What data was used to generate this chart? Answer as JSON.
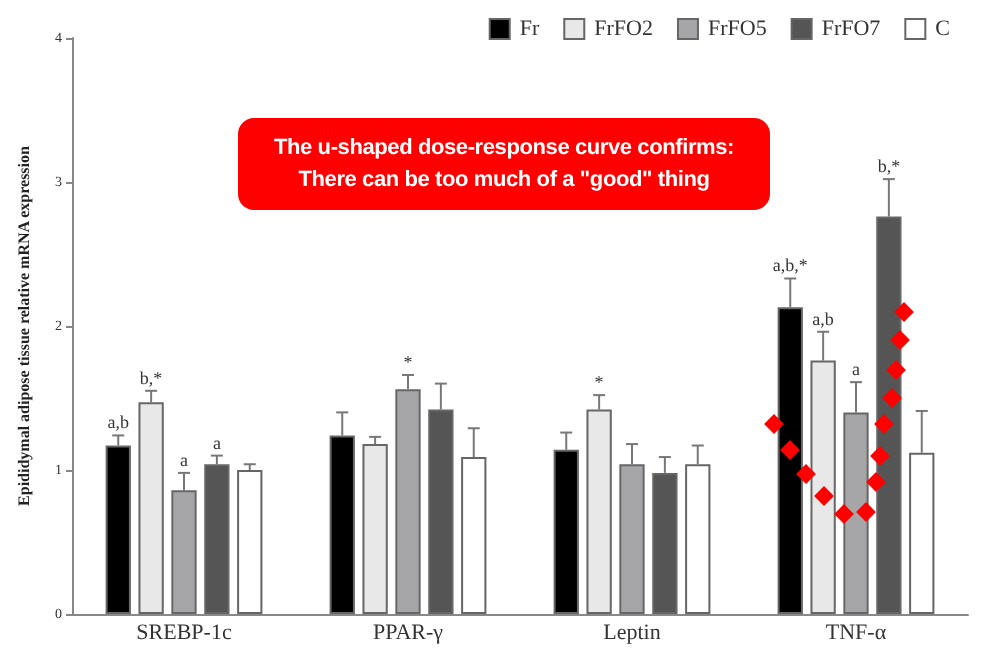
{
  "chart_data": {
    "type": "bar",
    "ylabel": "Epididymal adipose tissue relative mRNA expression",
    "categories": [
      "SREBP-1c",
      "PPAR-γ",
      "Leptin",
      "TNF-α"
    ],
    "series": [
      {
        "name": "Fr",
        "color": "#000000",
        "values": [
          1.17,
          1.24,
          1.14,
          2.13
        ],
        "errors": [
          0.07,
          0.16,
          0.12,
          0.2
        ],
        "value_labels": [
          "a,b",
          null,
          null,
          "a,b,*"
        ]
      },
      {
        "name": "FrFO2",
        "color": "#e8e8e8",
        "values": [
          1.47,
          1.18,
          1.42,
          1.76
        ],
        "errors": [
          0.08,
          0.05,
          0.1,
          0.2
        ],
        "value_labels": [
          "b,*",
          null,
          "*",
          "a,b"
        ]
      },
      {
        "name": "FrFO5",
        "color": "#a6a6a8",
        "values": [
          0.86,
          1.56,
          1.04,
          1.4
        ],
        "errors": [
          0.12,
          0.1,
          0.14,
          0.21
        ],
        "value_labels": [
          "a",
          "*",
          null,
          "a"
        ]
      },
      {
        "name": "FrFO7",
        "color": "#555555",
        "values": [
          1.04,
          1.42,
          0.98,
          2.76
        ],
        "errors": [
          0.06,
          0.18,
          0.11,
          0.26
        ],
        "value_labels": [
          "a",
          null,
          null,
          "b,*"
        ]
      },
      {
        "name": "C",
        "color": "#ffffff",
        "values": [
          1.0,
          1.09,
          1.04,
          1.12
        ],
        "errors": [
          0.04,
          0.2,
          0.13,
          0.29
        ]
      }
    ],
    "ylim": [
      0,
      4
    ],
    "yticks": [
      0,
      1,
      2,
      3,
      4
    ],
    "grid": false,
    "legend": "top right",
    "annotations": [
      "The u-shaped dose-response curve confirms: There can be too much of a \"good\" thing"
    ]
  }
}
